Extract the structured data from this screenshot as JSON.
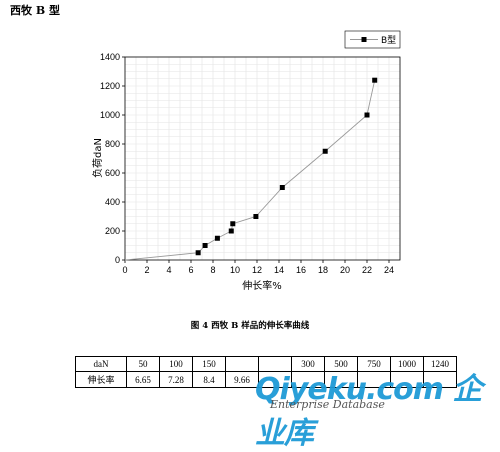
{
  "header": {
    "title": "西牧 B 型"
  },
  "chart_data": {
    "type": "line",
    "xlabel": "伸长率%",
    "ylabel": "负荷daN",
    "xlim": [
      0,
      25
    ],
    "ylim": [
      0,
      1400
    ],
    "xticks": [
      0,
      2,
      4,
      6,
      8,
      10,
      12,
      14,
      16,
      18,
      20,
      22,
      24
    ],
    "yticks": [
      0,
      200,
      400,
      600,
      800,
      1000,
      1200,
      1400
    ],
    "grid": true,
    "legend": "top-right",
    "series": [
      {
        "name": "B型",
        "color": "#999999",
        "marker": "square",
        "x": [
          0,
          6.65,
          7.28,
          8.4,
          9.66,
          9.8,
          11.9,
          14.3,
          18.2,
          22.0,
          22.7
        ],
        "y": [
          0,
          50,
          100,
          150,
          200,
          250,
          300,
          500,
          750,
          1000,
          1240
        ],
        "marker_from_index": 1
      }
    ]
  },
  "caption": "图 4  西牧 B 样品的伸长率曲线",
  "table": {
    "rows": [
      {
        "head": "daN",
        "cells": [
          "50",
          "100",
          "150",
          "",
          "",
          "300",
          "500",
          "750",
          "1000",
          "1240"
        ]
      },
      {
        "head": "伸长率",
        "cells": [
          "6.65",
          "7.28",
          "8.4",
          "9.66",
          "",
          "",
          "",
          "",
          "",
          ""
        ]
      }
    ]
  },
  "watermark": {
    "main": "Qiyeku.com 企业库",
    "sub": "Enterprise Database"
  }
}
